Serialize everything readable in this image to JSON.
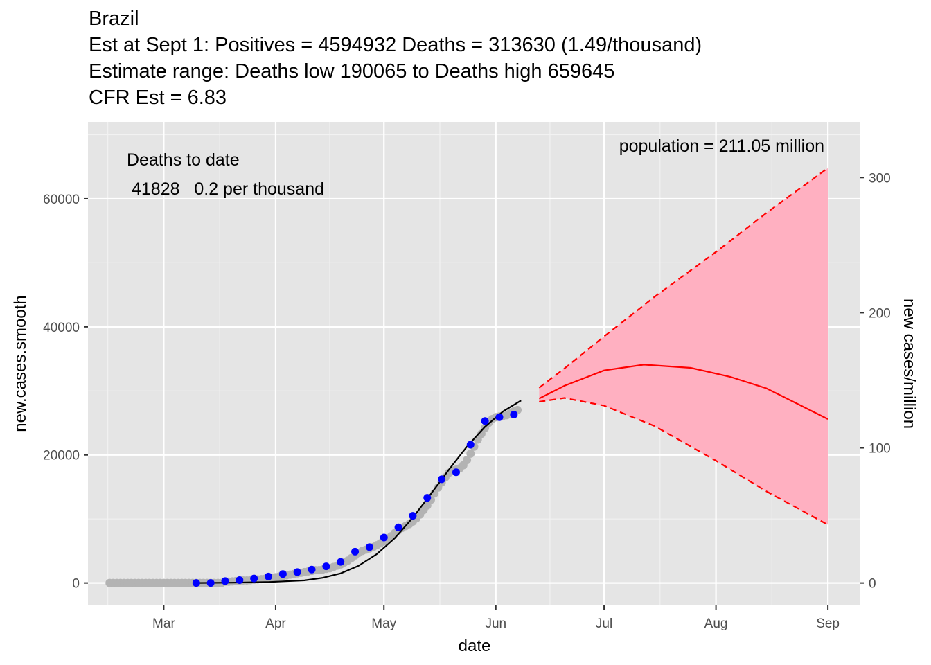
{
  "chart_data": {
    "type": "line",
    "title": "Brazil",
    "subtitle_lines": [
      "Est at Sept 1: Positives = 4594932 Deaths = 313630 (1.49/thousand)",
      "Estimate range: Deaths low 190065 to Deaths high 659645",
      "CFR Est = 6.83"
    ],
    "xlabel": "date",
    "ylabel": "new.cases.smooth",
    "y2label": "new cases/million",
    "x_ticks": [
      "Mar",
      "Apr",
      "May",
      "Jun",
      "Jul",
      "Aug",
      "Sep"
    ],
    "x_tick_dates": [
      "2020-03-01",
      "2020-04-01",
      "2020-05-01",
      "2020-06-01",
      "2020-07-01",
      "2020-08-01",
      "2020-09-01"
    ],
    "x_range": [
      "2020-02-09",
      "2020-09-10"
    ],
    "y_ticks": [
      0,
      20000,
      40000,
      60000
    ],
    "y_range": [
      -3500,
      72000
    ],
    "y2_ticks": [
      0,
      100,
      200,
      300
    ],
    "y2_scale_population_millions": 211.05,
    "grid": true,
    "annotations": {
      "deaths_header": "Deaths to date",
      "deaths_value": "41828   0.2 per thousand",
      "population": "population = 211.05 million"
    },
    "series": [
      {
        "kind": "points",
        "color": "#b3b3b3",
        "points": [
          [
            "2020-02-15",
            0
          ],
          [
            "2020-02-16",
            0
          ],
          [
            "2020-02-17",
            0
          ],
          [
            "2020-02-18",
            0
          ],
          [
            "2020-02-19",
            0
          ],
          [
            "2020-02-20",
            0
          ],
          [
            "2020-02-21",
            0
          ],
          [
            "2020-02-22",
            0
          ],
          [
            "2020-02-23",
            0
          ],
          [
            "2020-02-24",
            0
          ],
          [
            "2020-02-25",
            0
          ],
          [
            "2020-02-26",
            0
          ],
          [
            "2020-02-27",
            0
          ],
          [
            "2020-02-28",
            0
          ],
          [
            "2020-02-29",
            0
          ],
          [
            "2020-03-01",
            0
          ],
          [
            "2020-03-02",
            0
          ],
          [
            "2020-03-03",
            0
          ],
          [
            "2020-03-04",
            0
          ],
          [
            "2020-03-05",
            0
          ],
          [
            "2020-03-06",
            0
          ],
          [
            "2020-03-07",
            0
          ],
          [
            "2020-03-08",
            0
          ],
          [
            "2020-03-09",
            0
          ],
          [
            "2020-03-10",
            0
          ],
          [
            "2020-03-11",
            0
          ],
          [
            "2020-03-12",
            0
          ],
          [
            "2020-03-13",
            0
          ],
          [
            "2020-03-14",
            0
          ],
          [
            "2020-03-15",
            0
          ],
          [
            "2020-03-16",
            0
          ],
          [
            "2020-03-17",
            0
          ],
          [
            "2020-03-18",
            200
          ],
          [
            "2020-03-19",
            200
          ],
          [
            "2020-03-20",
            250
          ],
          [
            "2020-03-21",
            300
          ],
          [
            "2020-03-22",
            350
          ],
          [
            "2020-03-23",
            400
          ],
          [
            "2020-03-24",
            400
          ],
          [
            "2020-03-25",
            450
          ],
          [
            "2020-03-26",
            500
          ],
          [
            "2020-03-27",
            550
          ],
          [
            "2020-03-28",
            600
          ],
          [
            "2020-03-29",
            650
          ],
          [
            "2020-03-30",
            700
          ],
          [
            "2020-03-31",
            800
          ],
          [
            "2020-04-01",
            900
          ],
          [
            "2020-04-02",
            1000
          ],
          [
            "2020-04-03",
            1100
          ],
          [
            "2020-04-04",
            1200
          ],
          [
            "2020-04-05",
            1300
          ],
          [
            "2020-04-06",
            1400
          ],
          [
            "2020-04-07",
            1500
          ],
          [
            "2020-04-08",
            1600
          ],
          [
            "2020-04-09",
            1700
          ],
          [
            "2020-04-10",
            1800
          ],
          [
            "2020-04-11",
            1900
          ],
          [
            "2020-04-12",
            2000
          ],
          [
            "2020-04-13",
            2000
          ],
          [
            "2020-04-14",
            2100
          ],
          [
            "2020-04-15",
            2200
          ],
          [
            "2020-04-16",
            2300
          ],
          [
            "2020-04-17",
            2500
          ],
          [
            "2020-04-18",
            2700
          ],
          [
            "2020-04-19",
            2900
          ],
          [
            "2020-04-20",
            3200
          ],
          [
            "2020-04-21",
            3500
          ],
          [
            "2020-04-22",
            3900
          ],
          [
            "2020-04-23",
            4300
          ],
          [
            "2020-04-24",
            4700
          ],
          [
            "2020-04-25",
            5000
          ],
          [
            "2020-04-26",
            5200
          ],
          [
            "2020-04-27",
            5400
          ],
          [
            "2020-04-28",
            5600
          ],
          [
            "2020-04-29",
            5900
          ],
          [
            "2020-04-30",
            6200
          ],
          [
            "2020-05-01",
            6500
          ],
          [
            "2020-05-02",
            6900
          ],
          [
            "2020-05-03",
            7300
          ],
          [
            "2020-05-04",
            7800
          ],
          [
            "2020-05-05",
            8200
          ],
          [
            "2020-05-06",
            8600
          ],
          [
            "2020-05-07",
            8900
          ],
          [
            "2020-05-08",
            9200
          ],
          [
            "2020-05-09",
            9600
          ],
          [
            "2020-05-10",
            10100
          ],
          [
            "2020-05-11",
            10700
          ],
          [
            "2020-05-12",
            11400
          ],
          [
            "2020-05-13",
            12100
          ],
          [
            "2020-05-14",
            13000
          ],
          [
            "2020-05-15",
            14000
          ],
          [
            "2020-05-16",
            14900
          ],
          [
            "2020-05-17",
            15700
          ],
          [
            "2020-05-18",
            16500
          ],
          [
            "2020-05-19",
            17200
          ],
          [
            "2020-05-20",
            17600
          ],
          [
            "2020-05-21",
            17700
          ],
          [
            "2020-05-22",
            17900
          ],
          [
            "2020-05-23",
            18400
          ],
          [
            "2020-05-24",
            19200
          ],
          [
            "2020-05-25",
            20200
          ],
          [
            "2020-05-26",
            21300
          ],
          [
            "2020-05-27",
            22400
          ],
          [
            "2020-05-28",
            23300
          ],
          [
            "2020-05-29",
            24200
          ],
          [
            "2020-05-30",
            25000
          ],
          [
            "2020-05-31",
            25600
          ],
          [
            "2020-06-01",
            25900
          ],
          [
            "2020-06-02",
            26000
          ],
          [
            "2020-06-03",
            26100
          ],
          [
            "2020-06-04",
            26200
          ],
          [
            "2020-06-05",
            26500
          ],
          [
            "2020-06-06",
            26800
          ],
          [
            "2020-06-07",
            27000
          ]
        ]
      },
      {
        "kind": "points",
        "color": "#0000ff",
        "points": [
          [
            "2020-03-10",
            0
          ],
          [
            "2020-03-14",
            0
          ],
          [
            "2020-03-18",
            300
          ],
          [
            "2020-03-22",
            450
          ],
          [
            "2020-03-26",
            700
          ],
          [
            "2020-03-30",
            1000
          ],
          [
            "2020-04-03",
            1400
          ],
          [
            "2020-04-07",
            1700
          ],
          [
            "2020-04-11",
            2100
          ],
          [
            "2020-04-15",
            2600
          ],
          [
            "2020-04-19",
            3300
          ],
          [
            "2020-04-23",
            4900
          ],
          [
            "2020-04-27",
            5600
          ],
          [
            "2020-05-01",
            7100
          ],
          [
            "2020-05-05",
            8700
          ],
          [
            "2020-05-09",
            10500
          ],
          [
            "2020-05-13",
            13300
          ],
          [
            "2020-05-17",
            16200
          ],
          [
            "2020-05-21",
            17300
          ],
          [
            "2020-05-25",
            21600
          ],
          [
            "2020-05-29",
            25300
          ],
          [
            "2020-06-02",
            25900
          ],
          [
            "2020-06-06",
            26300
          ]
        ]
      },
      {
        "kind": "line",
        "color": "#000000",
        "dash": false,
        "points": [
          [
            "2020-03-10",
            0
          ],
          [
            "2020-03-20",
            50
          ],
          [
            "2020-03-30",
            150
          ],
          [
            "2020-04-09",
            400
          ],
          [
            "2020-04-14",
            800
          ],
          [
            "2020-04-19",
            1500
          ],
          [
            "2020-04-24",
            2700
          ],
          [
            "2020-04-29",
            4500
          ],
          [
            "2020-05-04",
            7000
          ],
          [
            "2020-05-09",
            10200
          ],
          [
            "2020-05-14",
            13900
          ],
          [
            "2020-05-19",
            17700
          ],
          [
            "2020-05-24",
            21300
          ],
          [
            "2020-05-29",
            24400
          ],
          [
            "2020-06-03",
            26800
          ],
          [
            "2020-06-08",
            28500
          ]
        ]
      },
      {
        "kind": "band",
        "fill": "#ffb0c1",
        "upper": [
          [
            "2020-06-13",
            30500
          ],
          [
            "2020-06-20",
            33500
          ],
          [
            "2020-07-01",
            38500
          ],
          [
            "2020-07-15",
            44700
          ],
          [
            "2020-08-01",
            51700
          ],
          [
            "2020-08-15",
            57800
          ],
          [
            "2020-09-01",
            64800
          ]
        ],
        "lower": [
          [
            "2020-06-13",
            28300
          ],
          [
            "2020-06-20",
            28900
          ],
          [
            "2020-07-01",
            27700
          ],
          [
            "2020-07-15",
            24500
          ],
          [
            "2020-08-01",
            19100
          ],
          [
            "2020-08-15",
            14300
          ],
          [
            "2020-09-01",
            9100
          ]
        ]
      },
      {
        "kind": "line",
        "color": "#ff0000",
        "dash": true,
        "points": [
          [
            "2020-06-13",
            30500
          ],
          [
            "2020-06-20",
            33500
          ],
          [
            "2020-07-01",
            38500
          ],
          [
            "2020-07-15",
            44700
          ],
          [
            "2020-08-01",
            51700
          ],
          [
            "2020-08-15",
            57800
          ],
          [
            "2020-09-01",
            64800
          ]
        ]
      },
      {
        "kind": "line",
        "color": "#ff0000",
        "dash": true,
        "points": [
          [
            "2020-06-13",
            28300
          ],
          [
            "2020-06-20",
            28900
          ],
          [
            "2020-07-01",
            27700
          ],
          [
            "2020-07-15",
            24500
          ],
          [
            "2020-08-01",
            19100
          ],
          [
            "2020-08-15",
            14300
          ],
          [
            "2020-09-01",
            9100
          ]
        ]
      },
      {
        "kind": "line",
        "color": "#ff0000",
        "dash": false,
        "points": [
          [
            "2020-06-13",
            28800
          ],
          [
            "2020-06-20",
            30800
          ],
          [
            "2020-07-01",
            33200
          ],
          [
            "2020-07-12",
            34100
          ],
          [
            "2020-07-25",
            33600
          ],
          [
            "2020-08-05",
            32200
          ],
          [
            "2020-08-15",
            30400
          ],
          [
            "2020-09-01",
            25600
          ]
        ]
      }
    ]
  }
}
